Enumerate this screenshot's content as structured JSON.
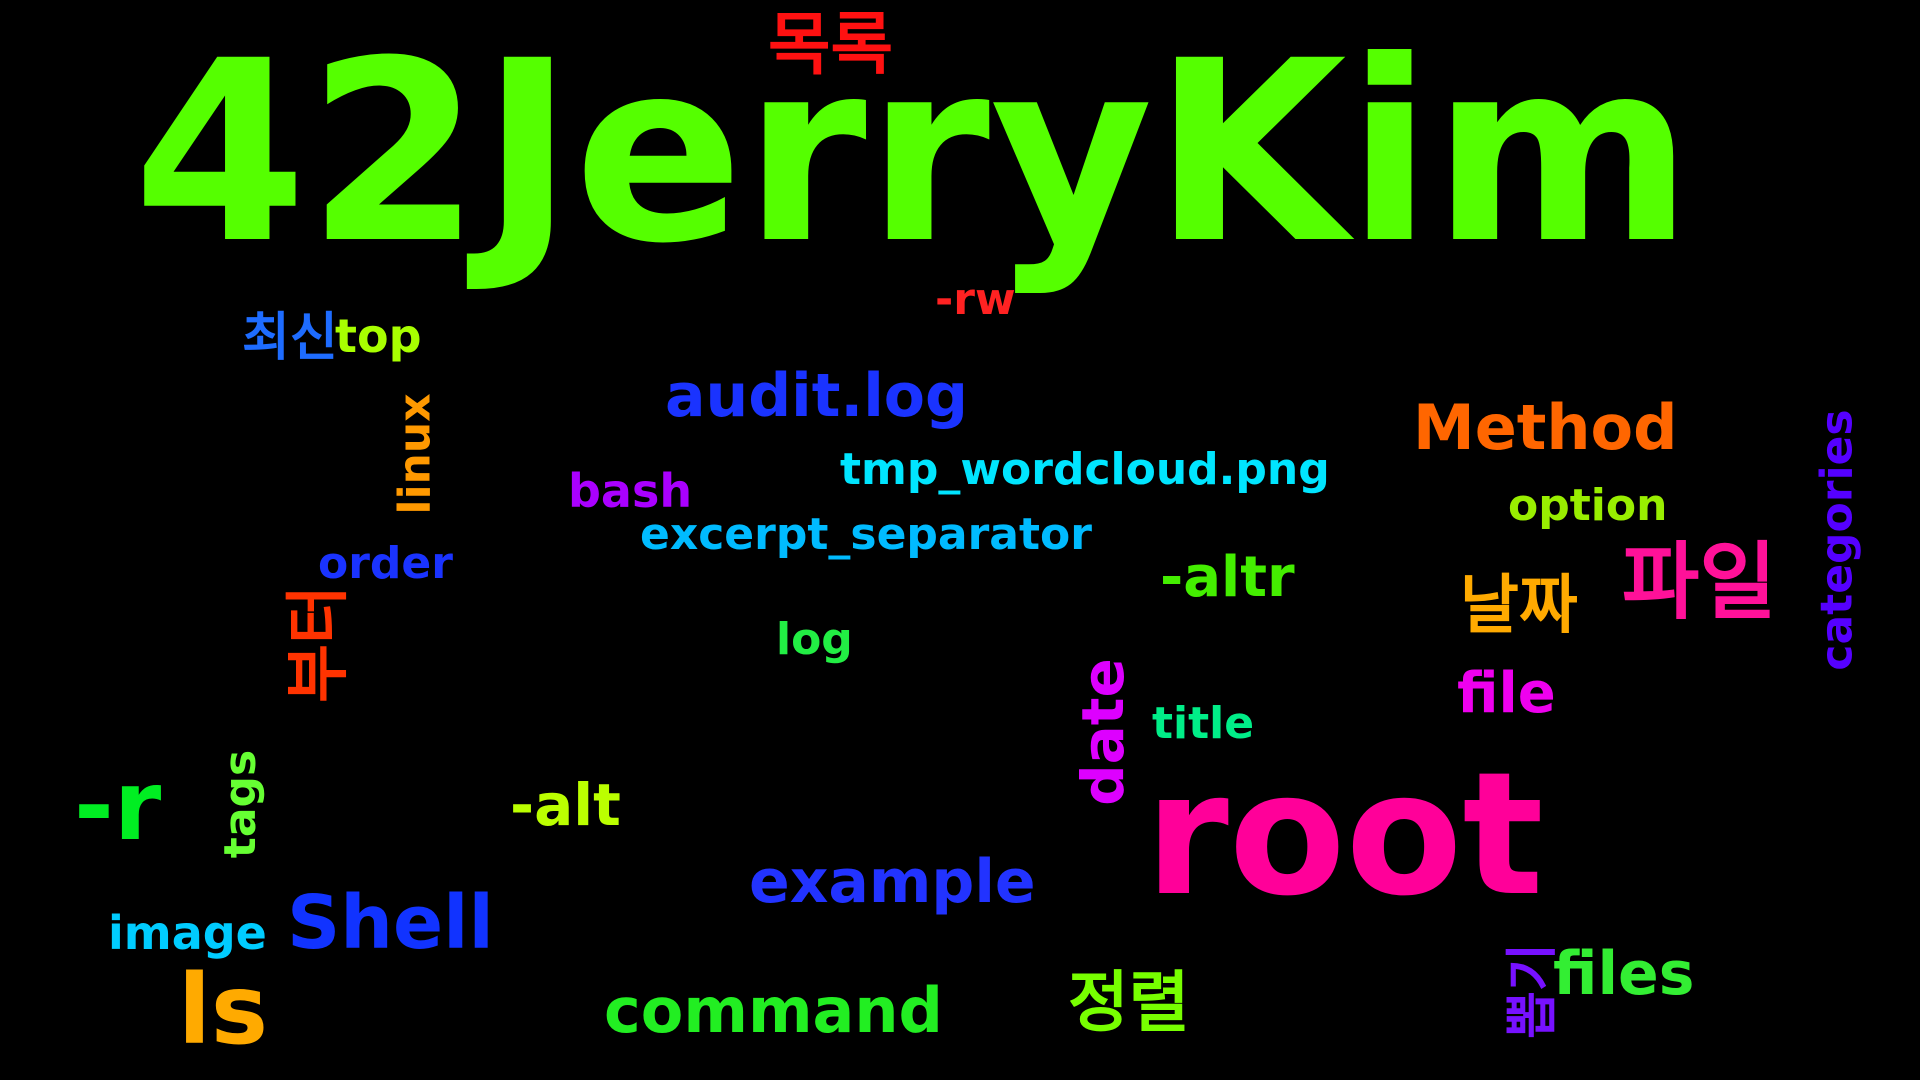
{
  "words": [
    {
      "text": "42JerryKim",
      "color": "#55ff00",
      "rotated": false
    },
    {
      "text": "root",
      "color": "#ff0099",
      "rotated": false
    },
    {
      "text": "목록",
      "color": "#ff1111",
      "rotated": false
    },
    {
      "text": "-rw",
      "color": "#ff2222",
      "rotated": false
    },
    {
      "text": "최신",
      "color": "#1e6cff",
      "rotated": false
    },
    {
      "text": "top",
      "color": "#a8ff00",
      "rotated": false
    },
    {
      "text": "audit.log",
      "color": "#1a33ff",
      "rotated": false
    },
    {
      "text": "Method",
      "color": "#ff6600",
      "rotated": false
    },
    {
      "text": "linux",
      "color": "#ff9900",
      "rotated": true
    },
    {
      "text": "bash",
      "color": "#aa00ff",
      "rotated": false
    },
    {
      "text": "tmp_wordcloud.png",
      "color": "#00e5ff",
      "rotated": false
    },
    {
      "text": "option",
      "color": "#99ee00",
      "rotated": false
    },
    {
      "text": "categories",
      "color": "#5500ff",
      "rotated": true
    },
    {
      "text": "excerpt_separator",
      "color": "#00bbff",
      "rotated": false
    },
    {
      "text": "order",
      "color": "#1a33ff",
      "rotated": false
    },
    {
      "text": "-altr",
      "color": "#44ee00",
      "rotated": false
    },
    {
      "text": "날짜",
      "color": "#ffaa00",
      "rotated": false
    },
    {
      "text": "파일",
      "color": "#ff1199",
      "rotated": false
    },
    {
      "text": "부터",
      "color": "#ff3300",
      "rotated": true
    },
    {
      "text": "log",
      "color": "#22ee44",
      "rotated": false
    },
    {
      "text": "file",
      "color": "#ee00ee",
      "rotated": false
    },
    {
      "text": "date",
      "color": "#dd00ff",
      "rotated": true
    },
    {
      "text": "title",
      "color": "#00ee88",
      "rotated": false
    },
    {
      "text": "-r",
      "color": "#00ee22",
      "rotated": false
    },
    {
      "text": "tags",
      "color": "#66ff33",
      "rotated": true
    },
    {
      "text": "-alt",
      "color": "#bbff00",
      "rotated": false
    },
    {
      "text": "example",
      "color": "#2233ff",
      "rotated": false
    },
    {
      "text": "image",
      "color": "#00ccff",
      "rotated": false
    },
    {
      "text": "Shell",
      "color": "#1133ff",
      "rotated": false
    },
    {
      "text": "ls",
      "color": "#ffaa00",
      "rotated": false
    },
    {
      "text": "command",
      "color": "#22ee22",
      "rotated": false
    },
    {
      "text": "정렬",
      "color": "#77ff00",
      "rotated": false
    },
    {
      "text": "뽑기",
      "color": "#7711ff",
      "rotated": true
    },
    {
      "text": "files",
      "color": "#33ee33",
      "rotated": false
    }
  ]
}
